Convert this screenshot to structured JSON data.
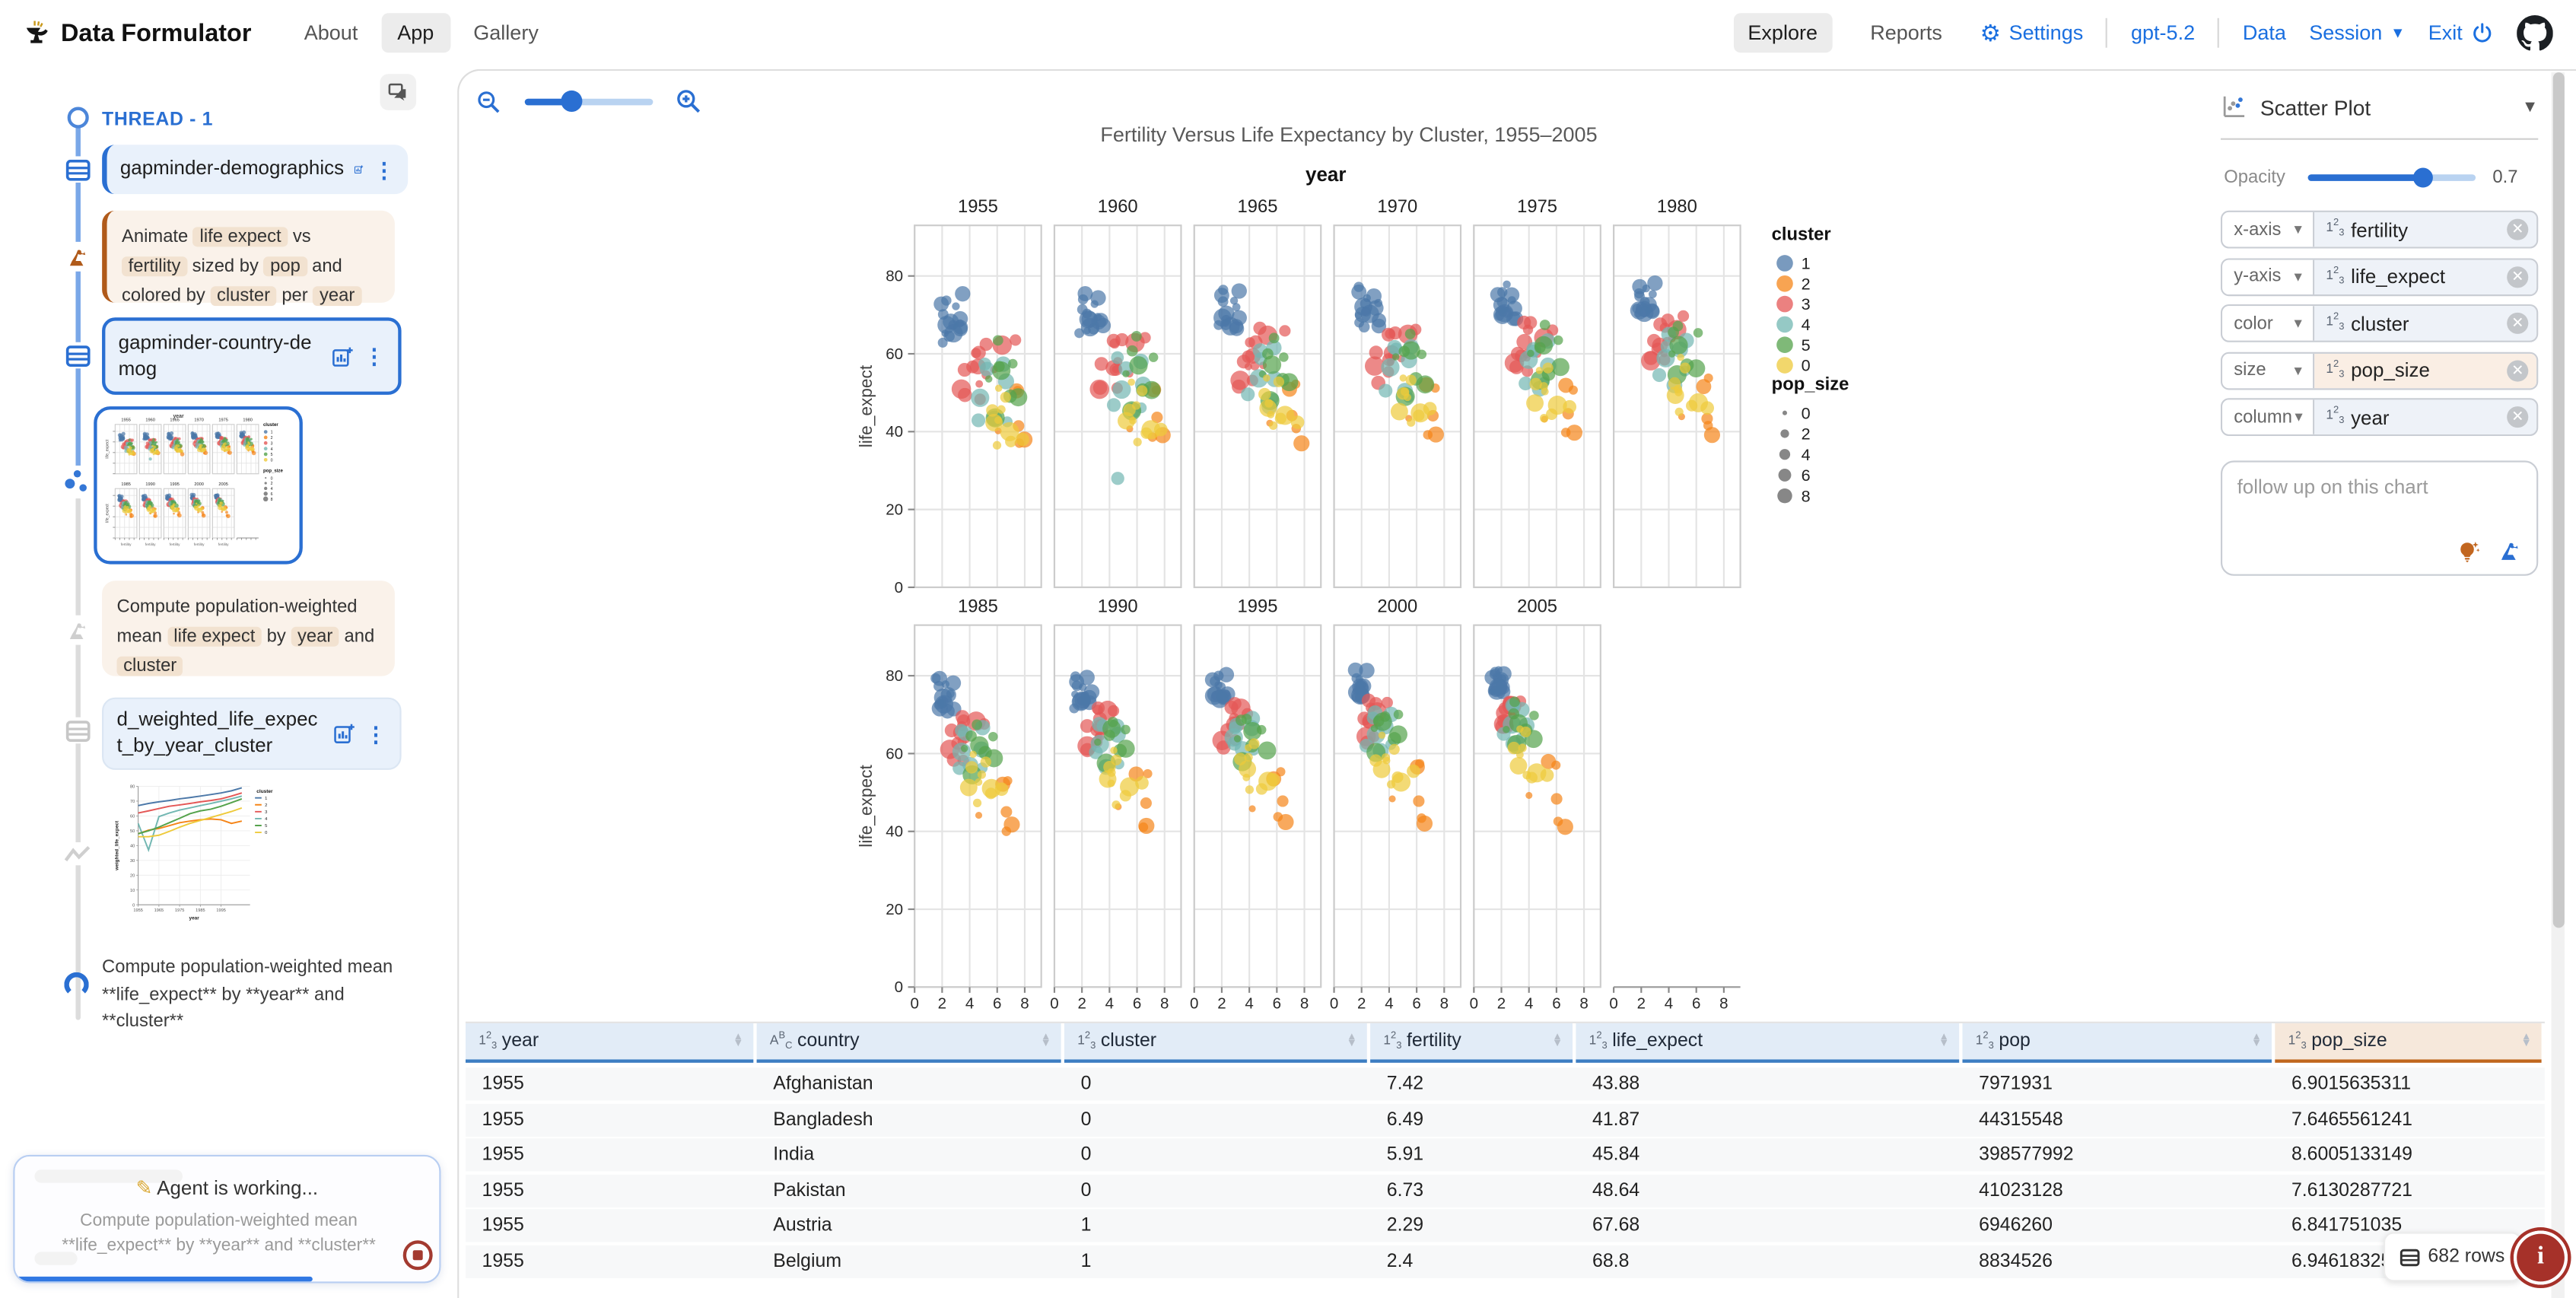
{
  "navbar": {
    "brand": "Data Formulator",
    "tabs": [
      "About",
      "App",
      "Gallery"
    ],
    "active_tab": "App",
    "view_tabs": [
      "Explore",
      "Reports"
    ],
    "active_view": "Explore",
    "settings": "Settings",
    "model": "gpt-5.2",
    "data": "Data",
    "session": "Session",
    "exit": "Exit"
  },
  "sidebar": {
    "thread": "THREAD - 1",
    "dataset1": "gapminder-demographics",
    "prompt1": [
      {
        "t": "Animate "
      },
      {
        "c": "life expect"
      },
      {
        "t": " vs "
      },
      {
        "c": "fertility"
      },
      {
        "t": " sized by "
      },
      {
        "c": "pop"
      },
      {
        "t": " and colored by "
      },
      {
        "c": "cluster"
      },
      {
        "t": " per "
      },
      {
        "c": "year"
      }
    ],
    "dataset2": "gapminder-country-demog",
    "prompt2": [
      {
        "t": "Compute population-weighted mean "
      },
      {
        "c": "life expect"
      },
      {
        "t": " by "
      },
      {
        "c": "year"
      },
      {
        "t": " and "
      },
      {
        "c": "cluster"
      }
    ],
    "dataset3": "d_weighted_life_expect_by_year_cluster",
    "note": "Compute population-weighted mean **life_expect** by **year** and **cluster**",
    "agent": {
      "title": "Agent is working...",
      "subtitle": "Compute population-weighted mean **life_expect** by **year** and **cluster**",
      "progress": 0.7
    }
  },
  "encoding": {
    "chart_type": "Scatter Plot",
    "opacity_label": "Opacity",
    "opacity_value": "0.7",
    "rows": [
      {
        "channel": "x-axis",
        "field": "fertility",
        "tone": "default"
      },
      {
        "channel": "y-axis",
        "field": "life_expect",
        "tone": "default"
      },
      {
        "channel": "color",
        "field": "cluster",
        "tone": "default"
      },
      {
        "channel": "size",
        "field": "pop_size",
        "tone": "peach"
      },
      {
        "channel": "column",
        "field": "year",
        "tone": "default"
      }
    ],
    "followup_placeholder": "follow up on this chart"
  },
  "chart_data": {
    "scatter": {
      "type": "scatter",
      "title": "Fertility Versus Life Expectancy by Cluster, 1955–2005",
      "column_header": "year",
      "x_field": "fertility",
      "y_field": "life_expect",
      "x_ticks": [
        0,
        2,
        4,
        6,
        8
      ],
      "y_ticks": [
        0,
        20,
        40,
        60,
        80
      ],
      "x_domain": [
        0,
        9.2
      ],
      "y_domain": [
        0,
        93
      ],
      "years_row1": [
        1955,
        1960,
        1965,
        1970,
        1975,
        1980
      ],
      "years_row2": [
        1985,
        1990,
        1995,
        2000,
        2005
      ],
      "opacity": 0.7,
      "legend": {
        "cluster_title": "cluster",
        "cluster_items": [
          "1",
          "2",
          "3",
          "4",
          "5",
          "0"
        ],
        "size_title": "pop_size",
        "size_items": [
          "0",
          "2",
          "4",
          "6",
          "8"
        ]
      },
      "clusters": [
        {
          "id": "1",
          "color": "#4c78a8",
          "n": 16,
          "start": {
            "f": [
              1.8,
              3.6
            ],
            "l": [
              63,
              74
            ]
          },
          "end": {
            "f": [
              1.3,
              2.1
            ],
            "l": [
              75,
              81
            ]
          }
        },
        {
          "id": "2",
          "color": "#f58518",
          "n": 6,
          "start": {
            "f": [
              5.8,
              8.0
            ],
            "l": [
              37,
              50
            ]
          },
          "end": {
            "f": [
              4.0,
              6.6
            ],
            "l": [
              42,
              58
            ]
          }
        },
        {
          "id": "3",
          "color": "#e45756",
          "n": 14,
          "start": {
            "f": [
              3.2,
              7.4
            ],
            "l": [
              48,
              65
            ]
          },
          "end": {
            "f": [
              1.9,
              3.4
            ],
            "l": [
              66,
              75
            ]
          }
        },
        {
          "id": "4",
          "color": "#72b7b2",
          "n": 8,
          "start": {
            "f": [
              3.8,
              6.8
            ],
            "l": [
              40,
              62
            ]
          },
          "end": {
            "f": [
              1.8,
              3.8
            ],
            "l": [
              63,
              74
            ]
          }
        },
        {
          "id": "5",
          "color": "#54a24b",
          "n": 8,
          "start": {
            "f": [
              5.4,
              7.4
            ],
            "l": [
              44,
              62
            ]
          },
          "end": {
            "f": [
              2.2,
              4.6
            ],
            "l": [
              63,
              72
            ]
          }
        },
        {
          "id": "0",
          "color": "#eeca3b",
          "n": 10,
          "start": {
            "f": [
              5.6,
              8.2
            ],
            "l": [
              36,
              50
            ]
          },
          "end": {
            "f": [
              3.0,
              6.0
            ],
            "l": [
              52,
              66
            ]
          }
        }
      ],
      "outlier": {
        "cluster": "4",
        "year": 1960,
        "f": 4.6,
        "l": 28
      }
    },
    "line_thumb": {
      "type": "line",
      "x": [
        1955,
        1960,
        1965,
        1970,
        1975,
        1980,
        1985,
        1990,
        1995,
        2000,
        2005
      ],
      "x_tick_labels": [
        1955,
        1965,
        1975,
        1985,
        1995
      ],
      "xlabel": "year",
      "ylabel": "weighted_life_expect",
      "ylim": [
        0,
        80
      ],
      "legend_title": "cluster",
      "series": [
        {
          "name": "1",
          "color": "#4c78a8",
          "values": [
            67,
            68.5,
            69.5,
            70.5,
            71.5,
            72.5,
            73.5,
            74.5,
            75.5,
            77,
            79
          ]
        },
        {
          "name": "2",
          "color": "#f58518",
          "values": [
            48,
            50.5,
            51.5,
            53.5,
            55.5,
            56.5,
            57.5,
            58,
            57.5,
            55,
            56.5
          ]
        },
        {
          "name": "3",
          "color": "#e45756",
          "values": [
            62,
            63.5,
            65,
            66.5,
            67.5,
            68.5,
            69.5,
            70.5,
            71.5,
            73.5,
            75.5
          ]
        },
        {
          "name": "4",
          "color": "#72b7b2",
          "values": [
            55,
            37,
            59.5,
            62,
            64,
            65.5,
            67,
            68.5,
            70,
            71.5,
            73.5
          ]
        },
        {
          "name": "5",
          "color": "#54a24b",
          "values": [
            48,
            50,
            52.5,
            55.5,
            58.5,
            61.5,
            63.5,
            64.5,
            66.5,
            69,
            71.5
          ]
        },
        {
          "name": "0",
          "color": "#eeca3b",
          "values": [
            46,
            46,
            47,
            49.5,
            52.5,
            55,
            57,
            59,
            61,
            63,
            65.5
          ]
        }
      ]
    }
  },
  "table": {
    "columns": [
      {
        "name": "year",
        "type": "num"
      },
      {
        "name": "country",
        "type": "str"
      },
      {
        "name": "cluster",
        "type": "num"
      },
      {
        "name": "fertility",
        "type": "num"
      },
      {
        "name": "life_expect",
        "type": "num"
      },
      {
        "name": "pop",
        "type": "num"
      },
      {
        "name": "pop_size",
        "type": "num",
        "highlight": true
      }
    ],
    "rows": [
      [
        "1955",
        "Afghanistan",
        "0",
        "7.42",
        "43.88",
        "7971931",
        "6.9015635311"
      ],
      [
        "1955",
        "Bangladesh",
        "0",
        "6.49",
        "41.87",
        "44315548",
        "7.6465561241"
      ],
      [
        "1955",
        "India",
        "0",
        "5.91",
        "45.84",
        "398577992",
        "8.6005133149"
      ],
      [
        "1955",
        "Pakistan",
        "0",
        "6.73",
        "48.64",
        "41023128",
        "7.6130287721"
      ],
      [
        "1955",
        "Austria",
        "1",
        "2.29",
        "67.68",
        "6946260",
        "6.841751035"
      ],
      [
        "1955",
        "Belgium",
        "1",
        "2.4",
        "68.8",
        "8834526",
        "6.9461832532"
      ]
    ],
    "row_count": "682 rows"
  }
}
